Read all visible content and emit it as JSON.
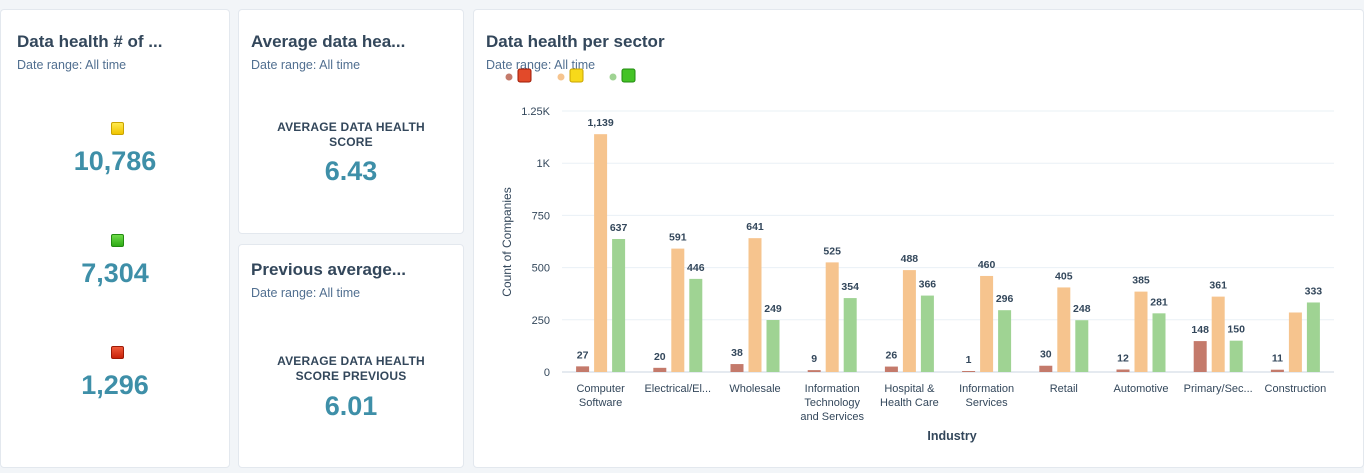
{
  "cards": {
    "health_count": {
      "title": "Data health # of ...",
      "date_range": "Date range: All time",
      "items": [
        {
          "icon": "yellow-square-icon",
          "value": "10,786"
        },
        {
          "icon": "green-square-icon",
          "value": "7,304"
        },
        {
          "icon": "red-square-icon",
          "value": "1,296"
        }
      ]
    },
    "average": {
      "title": "Average data hea...",
      "date_range": "Date range: All time",
      "label_line1": "AVERAGE DATA HEALTH",
      "label_line2": "SCORE",
      "value": "6.43"
    },
    "previous": {
      "title": "Previous average...",
      "date_range": "Date range: All time",
      "label_line1": "AVERAGE DATA HEALTH",
      "label_line2": "SCORE PREVIOUS",
      "value": "6.01"
    },
    "sector": {
      "title": "Data health per sector",
      "date_range": "Date range: All time"
    }
  },
  "chart_data": {
    "type": "bar",
    "xlabel": "Industry",
    "ylabel": "Count of Companies",
    "ylim": [
      0,
      1250
    ],
    "yticks": [
      {
        "value": 0,
        "label": "0"
      },
      {
        "value": 250,
        "label": "250"
      },
      {
        "value": 500,
        "label": "500"
      },
      {
        "value": 750,
        "label": "750"
      },
      {
        "value": 1000,
        "label": "1K"
      },
      {
        "value": 1250,
        "label": "1.25K"
      }
    ],
    "grid": true,
    "legend_position": "top-left",
    "categories": [
      [
        "Computer",
        "Software"
      ],
      [
        "Electrical/El..."
      ],
      [
        "Wholesale"
      ],
      [
        "Information",
        "Technology",
        "and Services"
      ],
      [
        "Hospital &",
        "Health Care"
      ],
      [
        "Information",
        "Services"
      ],
      [
        "Retail"
      ],
      [
        "Automotive"
      ],
      [
        "Primary/Sec..."
      ],
      [
        "Construction"
      ]
    ],
    "series": [
      {
        "icon": "red-square-icon",
        "color": "#c47a6b",
        "values": [
          27,
          20,
          38,
          9,
          26,
          1,
          30,
          12,
          148,
          11
        ],
        "labels": [
          "27",
          "20",
          "38",
          "9",
          "26",
          "1",
          "30",
          "12",
          "148",
          "11"
        ]
      },
      {
        "icon": "yellow-square-icon",
        "color": "#f6c48e",
        "values": [
          1139,
          591,
          641,
          525,
          488,
          460,
          405,
          385,
          361,
          285
        ],
        "labels": [
          "1,139",
          "591",
          "641",
          "525",
          "488",
          "460",
          "405",
          "385",
          "361",
          ""
        ]
      },
      {
        "icon": "green-square-icon",
        "color": "#9fd393",
        "values": [
          637,
          446,
          249,
          354,
          366,
          296,
          248,
          281,
          150,
          333
        ],
        "labels": [
          "637",
          "446",
          "249",
          "354",
          "366",
          "296",
          "248",
          "281",
          "150",
          "333"
        ]
      }
    ]
  }
}
